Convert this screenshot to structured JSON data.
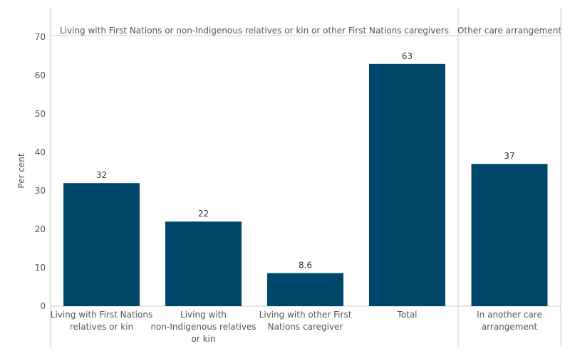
{
  "chart_data": {
    "type": "bar",
    "ylabel": "Per cent",
    "ylim": [
      0,
      70
    ],
    "yticks": [
      0,
      10,
      20,
      30,
      40,
      50,
      60,
      70
    ],
    "bar_color": "#00486b",
    "panels": [
      {
        "title": "Living with First Nations or non-Indigenous relatives or kin or other First Nations caregivers",
        "categories": [
          [
            "Living with First Nations",
            "relatives or kin"
          ],
          [
            "Living with",
            "non-Indigenous relatives",
            "or kin"
          ],
          [
            "Living with other First",
            "Nations caregiver"
          ],
          [
            "Total"
          ]
        ],
        "values": [
          32,
          22,
          8.6,
          63
        ],
        "value_labels": [
          "32",
          "22",
          "8.6",
          "63"
        ]
      },
      {
        "title": "Other care arrangement",
        "categories": [
          [
            "In another care",
            "arrangement"
          ]
        ],
        "values": [
          37
        ],
        "value_labels": [
          "37"
        ]
      }
    ]
  }
}
